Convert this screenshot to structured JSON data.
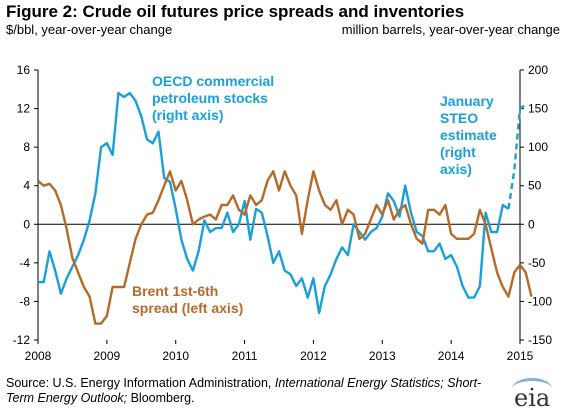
{
  "header": {
    "title": "Figure 2:  Crude oil futures price spreads and inventories",
    "left_unit": "$/bbl, year-over-year  change",
    "right_unit": "million barrels, year-over-year  change"
  },
  "footer": {
    "source_prefix": "Source:  U.S. Energy Information Administration, ",
    "source_ieo": "International Energy Statistics; Short-Term Energy Outlook;",
    "source_suffix": " Bloomberg.",
    "logo_text": "eia"
  },
  "colors": {
    "oecd": "#1aa0d8",
    "brent": "#b46b2a",
    "axis": "#000000"
  },
  "chart_data": {
    "type": "line",
    "title": "Figure 2:  Crude oil futures price spreads and inventories",
    "x_ticks": [
      "2008",
      "2009",
      "2010",
      "2011",
      "2012",
      "2013",
      "2014",
      "2015"
    ],
    "xlim": [
      2008,
      2015
    ],
    "left_axis": {
      "label": "$/bbl, year-over-year  change",
      "ylim": [
        -12,
        16
      ],
      "ticks": [
        "-12",
        "-8",
        "-4",
        "0",
        "4",
        "8",
        "12",
        "16"
      ]
    },
    "right_axis": {
      "label": "million barrels, year-over-year  change",
      "ylim": [
        -150,
        200
      ],
      "ticks": [
        "-150",
        "-100",
        "-50",
        "0",
        "50",
        "100",
        "150",
        "200"
      ]
    },
    "annotations": {
      "oecd": [
        "OECD commercial",
        "petroleum stocks",
        "(right axis)"
      ],
      "brent": [
        "Brent 1st-6th",
        "spread (left axis)"
      ],
      "steo": [
        "January",
        "STEO",
        "estimate",
        "(right",
        "axis)"
      ]
    },
    "series": [
      {
        "key": "oecd",
        "axis": "right",
        "points": [
          [
            2008.0,
            -75
          ],
          [
            2008.083,
            -75
          ],
          [
            2008.167,
            -35
          ],
          [
            2008.25,
            -60
          ],
          [
            2008.333,
            -90
          ],
          [
            2008.417,
            -70
          ],
          [
            2008.5,
            -55
          ],
          [
            2008.583,
            -40
          ],
          [
            2008.667,
            -20
          ],
          [
            2008.75,
            5
          ],
          [
            2008.833,
            40
          ],
          [
            2008.917,
            100
          ],
          [
            2009.0,
            105
          ],
          [
            2009.083,
            90
          ],
          [
            2009.167,
            170
          ],
          [
            2009.25,
            165
          ],
          [
            2009.333,
            170
          ],
          [
            2009.417,
            160
          ],
          [
            2009.5,
            140
          ],
          [
            2009.583,
            110
          ],
          [
            2009.667,
            105
          ],
          [
            2009.75,
            120
          ],
          [
            2009.833,
            60
          ],
          [
            2009.917,
            55
          ],
          [
            2010.0,
            20
          ],
          [
            2010.083,
            -20
          ],
          [
            2010.167,
            -45
          ],
          [
            2010.25,
            -60
          ],
          [
            2010.333,
            -35
          ],
          [
            2010.417,
            5
          ],
          [
            2010.5,
            -10
          ],
          [
            2010.583,
            -5
          ],
          [
            2010.667,
            -5
          ],
          [
            2010.75,
            15
          ],
          [
            2010.833,
            -10
          ],
          [
            2010.917,
            0
          ],
          [
            2011.0,
            30
          ],
          [
            2011.083,
            -20
          ],
          [
            2011.167,
            20
          ],
          [
            2011.25,
            15
          ],
          [
            2011.333,
            -15
          ],
          [
            2011.417,
            -50
          ],
          [
            2011.5,
            -35
          ],
          [
            2011.583,
            -60
          ],
          [
            2011.667,
            -65
          ],
          [
            2011.75,
            -80
          ],
          [
            2011.833,
            -70
          ],
          [
            2011.917,
            -95
          ],
          [
            2012.0,
            -70
          ],
          [
            2012.083,
            -115
          ],
          [
            2012.167,
            -80
          ],
          [
            2012.25,
            -65
          ],
          [
            2012.333,
            -45
          ],
          [
            2012.417,
            -30
          ],
          [
            2012.5,
            -40
          ],
          [
            2012.583,
            0
          ],
          [
            2012.667,
            -10
          ],
          [
            2012.75,
            -20
          ],
          [
            2012.833,
            -10
          ],
          [
            2012.917,
            -5
          ],
          [
            2013.0,
            10
          ],
          [
            2013.083,
            40
          ],
          [
            2013.167,
            30
          ],
          [
            2013.25,
            10
          ],
          [
            2013.333,
            50
          ],
          [
            2013.417,
            15
          ],
          [
            2013.5,
            -10
          ],
          [
            2013.583,
            -15
          ],
          [
            2013.667,
            -35
          ],
          [
            2013.75,
            -35
          ],
          [
            2013.833,
            -25
          ],
          [
            2013.917,
            -45
          ],
          [
            2014.0,
            -40
          ],
          [
            2014.083,
            -55
          ],
          [
            2014.167,
            -80
          ],
          [
            2014.25,
            -95
          ],
          [
            2014.333,
            -95
          ],
          [
            2014.417,
            -80
          ],
          [
            2014.5,
            15
          ],
          [
            2014.583,
            -10
          ],
          [
            2014.667,
            -10
          ],
          [
            2014.75,
            25
          ],
          [
            2014.833,
            20
          ]
        ]
      },
      {
        "key": "oecd_estimate",
        "axis": "right",
        "points": [
          [
            2014.833,
            20
          ],
          [
            2014.917,
            70
          ],
          [
            2015.0,
            150
          ],
          [
            2015.083,
            155
          ]
        ]
      },
      {
        "key": "brent",
        "axis": "left",
        "points": [
          [
            2008.0,
            4.5
          ],
          [
            2008.083,
            4
          ],
          [
            2008.167,
            4.2
          ],
          [
            2008.25,
            3.5
          ],
          [
            2008.333,
            2
          ],
          [
            2008.417,
            -0.5
          ],
          [
            2008.5,
            -3.5
          ],
          [
            2008.583,
            -5
          ],
          [
            2008.667,
            -6.5
          ],
          [
            2008.75,
            -7.5
          ],
          [
            2008.833,
            -10.3
          ],
          [
            2008.917,
            -10.3
          ],
          [
            2009.0,
            -9.5
          ],
          [
            2009.083,
            -6.5
          ],
          [
            2009.167,
            -6.5
          ],
          [
            2009.25,
            -6.5
          ],
          [
            2009.333,
            -4
          ],
          [
            2009.417,
            -1.5
          ],
          [
            2009.5,
            0
          ],
          [
            2009.583,
            1
          ],
          [
            2009.667,
            1.2
          ],
          [
            2009.75,
            2.5
          ],
          [
            2009.833,
            4
          ],
          [
            2009.917,
            5.5
          ],
          [
            2010.0,
            3.5
          ],
          [
            2010.083,
            4.5
          ],
          [
            2010.167,
            2.5
          ],
          [
            2010.25,
            0
          ],
          [
            2010.333,
            0.5
          ],
          [
            2010.417,
            0.8
          ],
          [
            2010.5,
            1
          ],
          [
            2010.583,
            0.5
          ],
          [
            2010.667,
            2
          ],
          [
            2010.75,
            2
          ],
          [
            2010.833,
            3
          ],
          [
            2010.917,
            1.5
          ],
          [
            2011.0,
            1
          ],
          [
            2011.083,
            3
          ],
          [
            2011.167,
            2
          ],
          [
            2011.25,
            2.5
          ],
          [
            2011.333,
            4.5
          ],
          [
            2011.417,
            5.5
          ],
          [
            2011.5,
            3.5
          ],
          [
            2011.583,
            5.5
          ],
          [
            2011.667,
            4
          ],
          [
            2011.75,
            3
          ],
          [
            2011.833,
            -1
          ],
          [
            2011.917,
            2.5
          ],
          [
            2012.0,
            5.5
          ],
          [
            2012.083,
            3.5
          ],
          [
            2012.167,
            2
          ],
          [
            2012.25,
            1.5
          ],
          [
            2012.333,
            2.5
          ],
          [
            2012.417,
            0
          ],
          [
            2012.5,
            1.5
          ],
          [
            2012.583,
            1
          ],
          [
            2012.667,
            -1.5
          ],
          [
            2012.75,
            -1
          ],
          [
            2012.833,
            0.5
          ],
          [
            2012.917,
            2
          ],
          [
            2013.0,
            1
          ],
          [
            2013.083,
            2.5
          ],
          [
            2013.167,
            0.5
          ],
          [
            2013.25,
            1.5
          ],
          [
            2013.333,
            2
          ],
          [
            2013.417,
            0
          ],
          [
            2013.5,
            -1.5
          ],
          [
            2013.583,
            -2
          ],
          [
            2013.667,
            1.5
          ],
          [
            2013.75,
            1.5
          ],
          [
            2013.833,
            1
          ],
          [
            2013.917,
            2
          ],
          [
            2014.0,
            -1
          ],
          [
            2014.083,
            -1.5
          ],
          [
            2014.167,
            -1.5
          ],
          [
            2014.25,
            -1.5
          ],
          [
            2014.333,
            -1
          ],
          [
            2014.417,
            1.5
          ],
          [
            2014.5,
            0
          ],
          [
            2014.583,
            -2.5
          ],
          [
            2014.667,
            -5
          ],
          [
            2014.75,
            -6.5
          ],
          [
            2014.833,
            -7.5
          ],
          [
            2014.917,
            -5
          ],
          [
            2015.0,
            -4.2
          ],
          [
            2015.083,
            -5
          ],
          [
            2015.167,
            -7.5
          ]
        ]
      }
    ]
  }
}
